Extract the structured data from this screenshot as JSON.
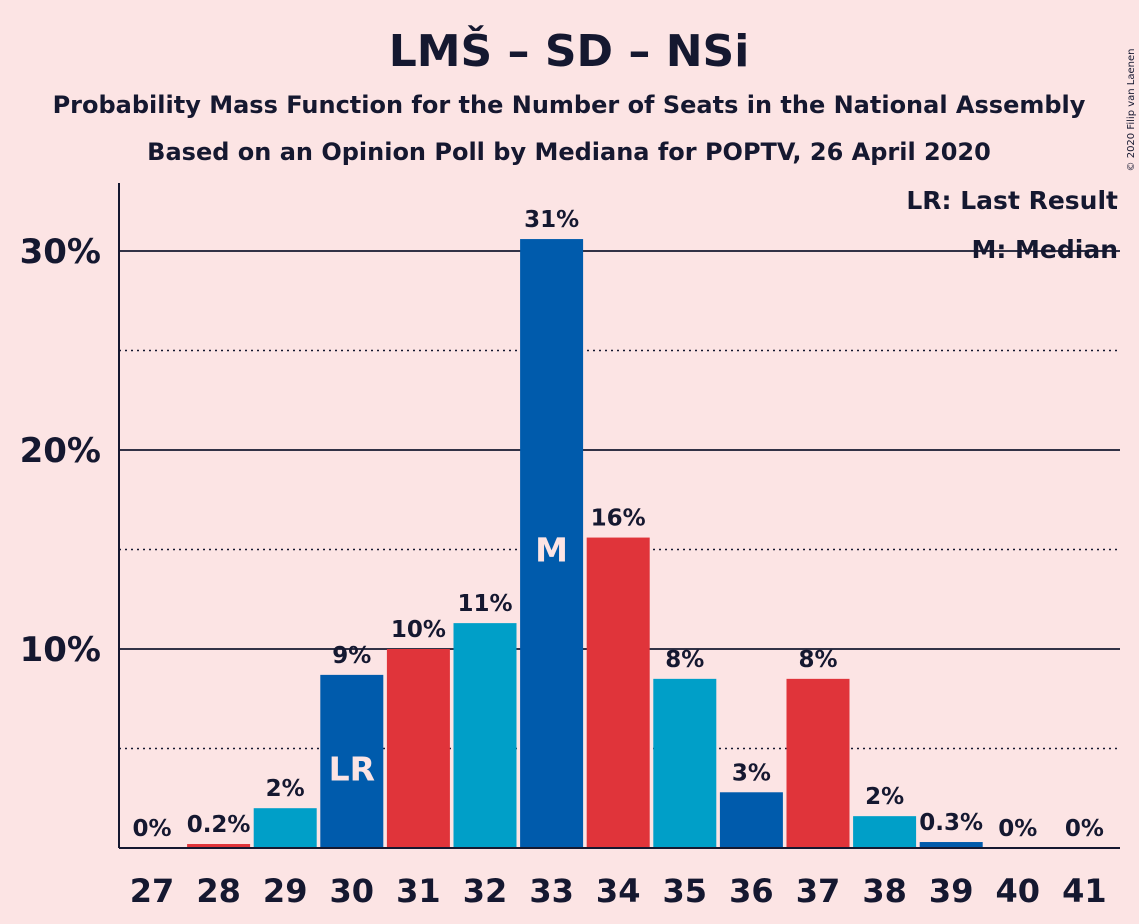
{
  "title": "LMŠ – SD – NSi",
  "subtitle1": "Probability Mass Function for the Number of Seats in the National Assembly",
  "subtitle2": "Based on an Opinion Poll by Mediana for POPTV, 26 April 2020",
  "copyright": "© 2020 Filip van Laenen",
  "legend": {
    "last_result": "LR: Last Result",
    "median": "M: Median"
  },
  "colors": {
    "background": "#FCE4E4",
    "dark_blue": "#005BAC",
    "red": "#E0343A",
    "light_blue": "#009FC8",
    "text": "#151830"
  },
  "chart_data": {
    "type": "bar",
    "categories": [
      "27",
      "28",
      "29",
      "30",
      "31",
      "32",
      "33",
      "34",
      "35",
      "36",
      "37",
      "38",
      "39",
      "40",
      "41"
    ],
    "values": [
      0,
      0.2,
      2.0,
      8.7,
      10.0,
      11.3,
      30.6,
      15.6,
      8.5,
      2.8,
      8.5,
      1.6,
      0.3,
      0,
      0
    ],
    "labels": [
      "0%",
      "0.2%",
      "2%",
      "9%",
      "10%",
      "11%",
      "31%",
      "16%",
      "8%",
      "3%",
      "8%",
      "2%",
      "0.3%",
      "0%",
      "0%"
    ],
    "bar_colors": [
      "dark_blue",
      "red",
      "light_blue",
      "dark_blue",
      "red",
      "light_blue",
      "dark_blue",
      "red",
      "light_blue",
      "dark_blue",
      "red",
      "light_blue",
      "dark_blue",
      "red",
      "light_blue"
    ],
    "markers": [
      {
        "category": "30",
        "text": "LR"
      },
      {
        "category": "33",
        "text": "M"
      }
    ],
    "yticks": [
      {
        "value": 10,
        "label": "10%"
      },
      {
        "value": 20,
        "label": "20%"
      },
      {
        "value": 30,
        "label": "30%"
      }
    ],
    "minor_gridlines": [
      5,
      15,
      25
    ],
    "ylim": [
      0,
      33.5
    ],
    "xlabel": "",
    "ylabel": "",
    "legend_position": "top-right"
  }
}
